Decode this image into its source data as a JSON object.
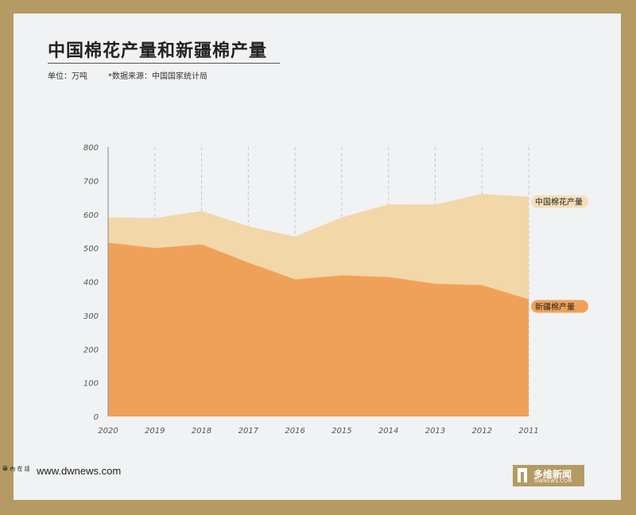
{
  "header": {
    "title": "中国棉花产量和新疆棉产量",
    "unit": "单位：万吨",
    "source": "*数据来源：中国国家统计局"
  },
  "footer": {
    "url": "www.dwnews.com",
    "mark": "華 內 在 話",
    "logo_name": "多维新闻",
    "logo_domain": "DWNEWS.COM"
  },
  "colors": {
    "china_area": "#f2d7a8",
    "xinjiang_area": "#f0a159",
    "china_label_bg": "#f5dfb8",
    "xinjiang_label_bg": "#f0a159"
  },
  "chart_data": {
    "type": "area",
    "x": [
      "2020",
      "2019",
      "2018",
      "2017",
      "2016",
      "2015",
      "2014",
      "2013",
      "2012",
      "2011"
    ],
    "series": [
      {
        "name": "中国棉花产量",
        "values": [
          591,
          589,
          610,
          565,
          534,
          591,
          630,
          629,
          661,
          652
        ]
      },
      {
        "name": "新疆棉产量",
        "values": [
          516,
          500,
          511,
          457,
          407,
          419,
          414,
          394,
          390,
          348
        ]
      }
    ],
    "yticks": [
      "0",
      "100",
      "200",
      "300",
      "400",
      "500",
      "600",
      "700",
      "800"
    ],
    "ylim": [
      0,
      800
    ],
    "grid": "vertical-dashed",
    "legend": "right-end labels"
  }
}
